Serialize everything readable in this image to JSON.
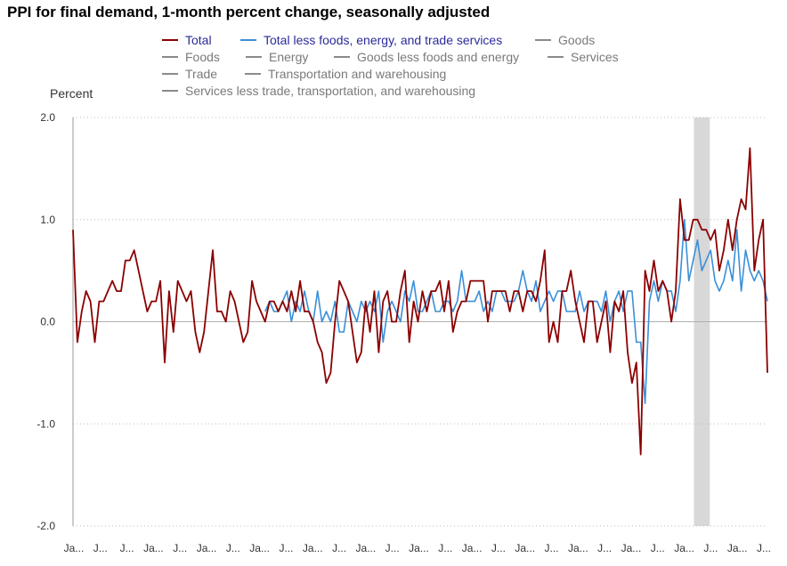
{
  "chart_data": {
    "type": "line",
    "title": "PPI for final demand, 1-month percent change, seasonally adjusted",
    "ylabel": "Percent",
    "xlabel": "",
    "ylim": [
      -2.0,
      2.0
    ],
    "yticks": [
      2.0,
      1.0,
      0.0,
      -1.0,
      -2.0
    ],
    "ytick_labels": [
      "2.0",
      "1.0",
      "0.0",
      "-1.0",
      "-2.0"
    ],
    "x_tick_labels": [
      "Ja...",
      "J...",
      "J...",
      "Ja...",
      "J...",
      "Ja...",
      "J...",
      "Ja...",
      "J...",
      "Ja...",
      "J...",
      "Ja...",
      "J...",
      "Ja...",
      "J...",
      "Ja...",
      "J...",
      "Ja...",
      "J...",
      "Ja...",
      "J...",
      "Ja...",
      "J...",
      "Ja...",
      "J...",
      "Ja...",
      "J..."
    ],
    "grid": "horizontal-dotted",
    "recession_shading": {
      "start_index": 143,
      "end_index": 145
    },
    "legend": [
      {
        "name": "Total",
        "color": "#8b0000",
        "active": true
      },
      {
        "name": "Total less foods, energy, and trade services",
        "color": "#3a8fd8",
        "active": true
      },
      {
        "name": "Goods",
        "color": "#8a8a8a",
        "active": false
      },
      {
        "name": "Foods",
        "color": "#8a8a8a",
        "active": false
      },
      {
        "name": "Energy",
        "color": "#8a8a8a",
        "active": false
      },
      {
        "name": "Goods less foods and energy",
        "color": "#8a8a8a",
        "active": false
      },
      {
        "name": "Services",
        "color": "#8a8a8a",
        "active": false
      },
      {
        "name": "Trade",
        "color": "#8a8a8a",
        "active": false
      },
      {
        "name": "Transportation and warehousing",
        "color": "#8a8a8a",
        "active": false
      },
      {
        "name": "Services less trade, transportation, and warehousing",
        "color": "#8a8a8a",
        "active": false
      }
    ],
    "series": [
      {
        "name": "Total",
        "color": "#8b0000",
        "values": [
          0.9,
          -0.2,
          0.1,
          0.3,
          0.2,
          -0.2,
          0.2,
          0.2,
          0.3,
          0.4,
          0.3,
          0.3,
          0.6,
          0.6,
          0.7,
          0.5,
          0.3,
          0.1,
          0.2,
          0.2,
          0.4,
          -0.4,
          0.3,
          -0.1,
          0.4,
          0.3,
          0.2,
          0.3,
          -0.1,
          -0.3,
          -0.1,
          0.3,
          0.7,
          0.1,
          0.1,
          0.0,
          0.3,
          0.2,
          0.0,
          -0.2,
          -0.1,
          0.4,
          0.2,
          0.1,
          0.0,
          0.2,
          0.2,
          0.1,
          0.2,
          0.1,
          0.3,
          0.1,
          0.4,
          0.1,
          0.1,
          0.0,
          -0.2,
          -0.3,
          -0.6,
          -0.5,
          0.0,
          0.4,
          0.3,
          0.2,
          -0.1,
          -0.4,
          -0.3,
          0.2,
          -0.1,
          0.3,
          -0.3,
          0.2,
          0.3,
          0.0,
          0.0,
          0.3,
          0.5,
          -0.2,
          0.2,
          0.0,
          0.3,
          0.1,
          0.3,
          0.3,
          0.4,
          0.1,
          0.4,
          -0.1,
          0.1,
          0.2,
          0.2,
          0.4,
          0.4,
          0.4,
          0.4,
          0.0,
          0.3,
          0.3,
          0.3,
          0.3,
          0.1,
          0.3,
          0.3,
          0.1,
          0.3,
          0.3,
          0.2,
          0.4,
          0.7,
          -0.2,
          0.0,
          -0.2,
          0.3,
          0.3,
          0.5,
          0.2,
          0.0,
          -0.2,
          0.2,
          0.2,
          -0.2,
          0.0,
          0.2,
          -0.3,
          0.2,
          0.1,
          0.3,
          -0.3,
          -0.6,
          -0.4,
          -1.3,
          0.5,
          0.3,
          0.6,
          0.3,
          0.4,
          0.3,
          0.0,
          0.3,
          1.2,
          0.8,
          0.8,
          1.0,
          1.0,
          0.9,
          0.9,
          0.8,
          0.9,
          0.5,
          0.7,
          1.0,
          0.7,
          1.0,
          1.2,
          1.1,
          1.7,
          0.5,
          0.8,
          1.0,
          -0.5
        ]
      },
      {
        "name": "Total less foods, energy, and trade services",
        "color": "#3a8fd8",
        "start_index": 44,
        "values": [
          0.1,
          0.2,
          0.1,
          0.1,
          0.2,
          0.3,
          0.0,
          0.2,
          0.1,
          0.3,
          0.1,
          0.0,
          0.3,
          0.0,
          0.1,
          0.0,
          0.2,
          -0.1,
          -0.1,
          0.2,
          0.1,
          0.0,
          0.2,
          0.1,
          0.2,
          0.1,
          0.3,
          -0.2,
          0.1,
          0.2,
          0.1,
          0.0,
          0.3,
          0.2,
          0.4,
          0.1,
          0.1,
          0.2,
          0.3,
          0.1,
          0.1,
          0.2,
          0.2,
          0.1,
          0.2,
          0.5,
          0.2,
          0.2,
          0.2,
          0.3,
          0.1,
          0.2,
          0.1,
          0.3,
          0.3,
          0.2,
          0.2,
          0.2,
          0.3,
          0.5,
          0.3,
          0.2,
          0.4,
          0.1,
          0.2,
          0.3,
          0.2,
          0.3,
          0.3,
          0.1,
          0.1,
          0.1,
          0.3,
          0.1,
          0.2,
          0.2,
          0.2,
          0.1,
          0.3,
          0.0,
          0.2,
          0.3,
          0.1,
          0.3,
          0.3,
          -0.2,
          -0.2,
          -0.8,
          0.2,
          0.4,
          0.2,
          0.4,
          0.3,
          0.3,
          0.1,
          0.4,
          1.0,
          0.4,
          0.6,
          0.8,
          0.5,
          0.6,
          0.7,
          0.4,
          0.3,
          0.4,
          0.6,
          0.4,
          0.9,
          0.3,
          0.7,
          0.5,
          0.4,
          0.5,
          0.4,
          0.2
        ]
      }
    ]
  }
}
